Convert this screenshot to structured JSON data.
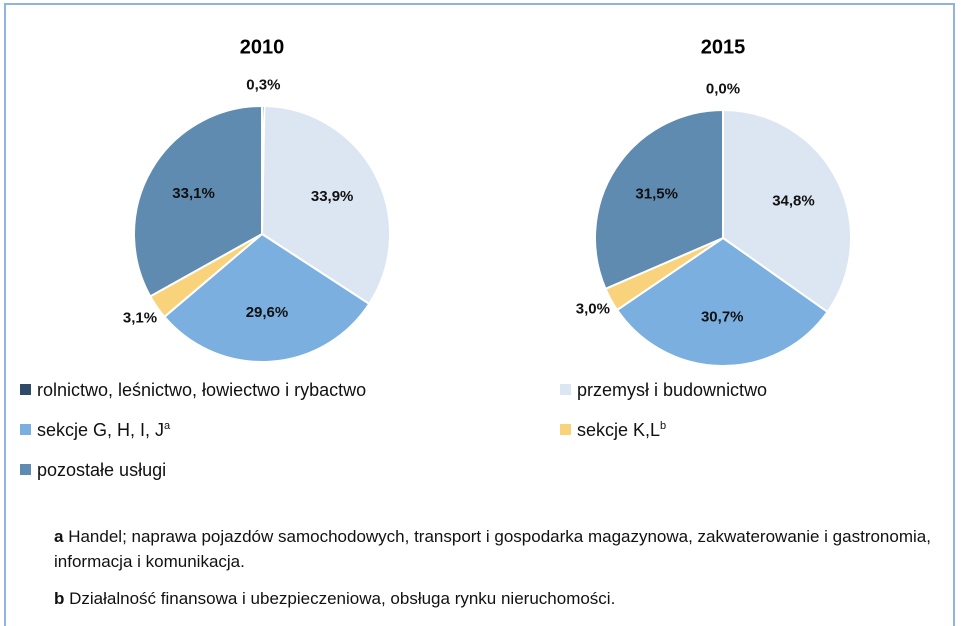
{
  "chart_data": [
    {
      "type": "pie",
      "title": "2010",
      "categories": [
        "rolnictwo, leśnictwo, łowiectwo i rybactwo",
        "przemysł i budownictwo",
        "sekcje G, H, I, J",
        "sekcje K,L",
        "pozostałe usługi"
      ],
      "values": [
        0.3,
        33.9,
        29.6,
        3.1,
        33.1
      ],
      "value_labels": [
        "0,3%",
        "33,9%",
        "29,6%",
        "3,1%",
        "33,1%"
      ],
      "colors": [
        "#2e4a66",
        "#dce6f2",
        "#7bafe0",
        "#f9d27c",
        "#5f8bb1"
      ]
    },
    {
      "type": "pie",
      "title": "2015",
      "categories": [
        "rolnictwo, leśnictwo, łowiectwo i rybactwo",
        "przemysł i budownictwo",
        "sekcje G, H, I, J",
        "sekcje K,L",
        "pozostałe usługi"
      ],
      "values": [
        0.0,
        34.8,
        30.7,
        3.0,
        31.5
      ],
      "value_labels": [
        "0,0%",
        "34,8%",
        "30,7%",
        "3,0%",
        "31,5%"
      ],
      "colors": [
        "#2e4a66",
        "#dce6f2",
        "#7bafe0",
        "#f9d27c",
        "#5f8bb1"
      ]
    }
  ],
  "footnotes": [
    {
      "mark": "a",
      "text": "Handel; naprawa pojazdów samochodowych, transport  i gospodarka magazynowa, zakwaterowanie i gastronomia, informacja i komunikacja."
    },
    {
      "mark": "b",
      "text": "Działalność finansowa i ubezpieczeniowa, obsługa rynku nieruchomości."
    }
  ]
}
